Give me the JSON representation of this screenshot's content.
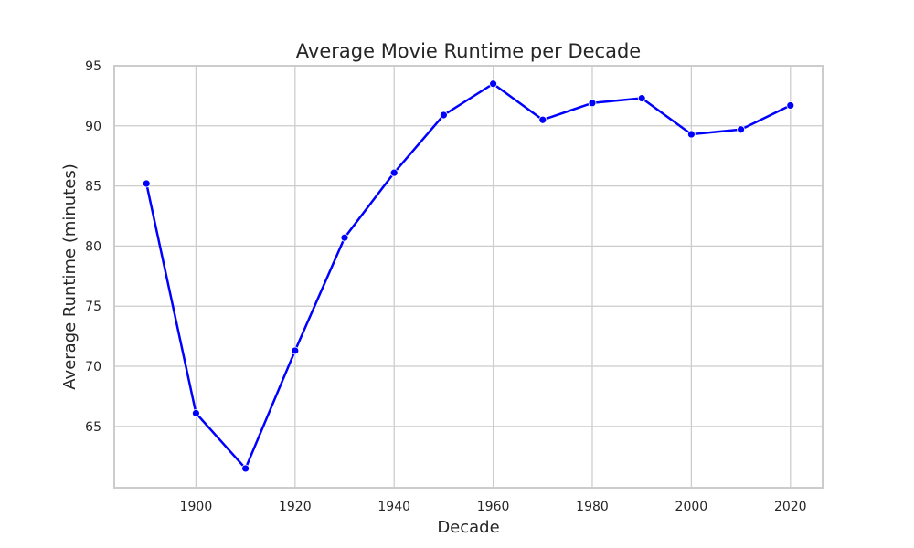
{
  "chart_data": {
    "type": "line",
    "title": "Average Movie Runtime per Decade",
    "xlabel": "Decade",
    "ylabel": "Average Runtime (minutes)",
    "x": [
      1890,
      1900,
      1910,
      1920,
      1930,
      1940,
      1950,
      1960,
      1970,
      1980,
      1990,
      2000,
      2010,
      2020
    ],
    "series": [
      {
        "name": "Average Runtime",
        "color": "#0000ff",
        "values": [
          85.2,
          66.1,
          61.5,
          71.3,
          80.7,
          86.1,
          90.9,
          93.5,
          90.5,
          91.9,
          92.3,
          89.3,
          89.7,
          91.7
        ]
      }
    ],
    "xlim": [
      1883.5,
      2026.5
    ],
    "ylim": [
      59.9,
      95.0
    ],
    "x_ticks": [
      1900,
      1920,
      1940,
      1960,
      1980,
      2000,
      2020
    ],
    "y_ticks": [
      65,
      70,
      75,
      80,
      85,
      90,
      95
    ],
    "grid": true,
    "marker": "circle"
  }
}
